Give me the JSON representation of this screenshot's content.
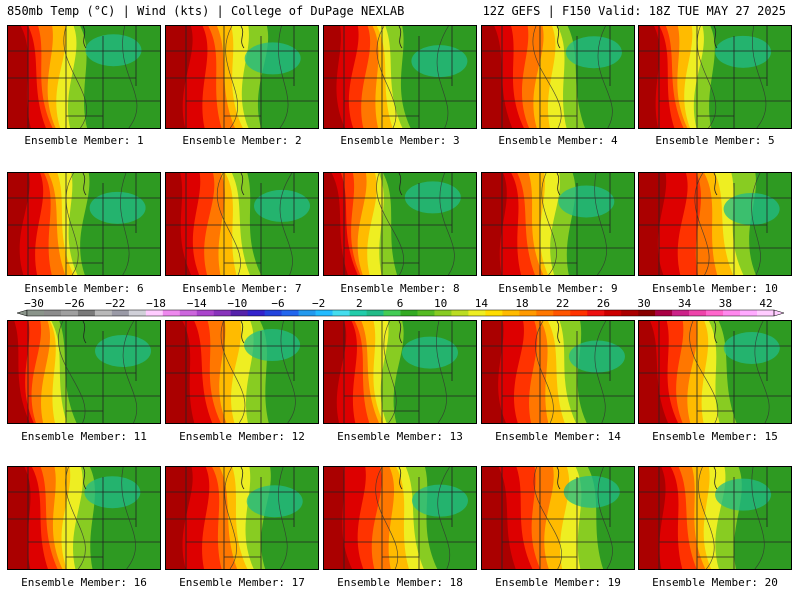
{
  "header": {
    "left": "850mb Temp (°C) | Wind (kts) | College of DuPage NEXLAB",
    "right": "12Z GEFS | F150 Valid: 18Z TUE MAY 27 2025"
  },
  "member_label_prefix": "Ensemble Member:",
  "members": [
    {
      "number": "1",
      "warm_extent": 0.38
    },
    {
      "number": "2",
      "warm_extent": 0.5
    },
    {
      "number": "3",
      "warm_extent": 0.42
    },
    {
      "number": "4",
      "warm_extent": 0.48
    },
    {
      "number": "5",
      "warm_extent": 0.36
    },
    {
      "number": "6",
      "warm_extent": 0.4
    },
    {
      "number": "7",
      "warm_extent": 0.45
    },
    {
      "number": "8",
      "warm_extent": 0.33
    },
    {
      "number": "9",
      "warm_extent": 0.45
    },
    {
      "number": "10",
      "warm_extent": 0.6
    },
    {
      "number": "11",
      "warm_extent": 0.3
    },
    {
      "number": "12",
      "warm_extent": 0.5
    },
    {
      "number": "13",
      "warm_extent": 0.38
    },
    {
      "number": "14",
      "warm_extent": 0.52
    },
    {
      "number": "15",
      "warm_extent": 0.45
    },
    {
      "number": "16",
      "warm_extent": 0.42
    },
    {
      "number": "17",
      "warm_extent": 0.52
    },
    {
      "number": "18",
      "warm_extent": 0.55
    },
    {
      "number": "19",
      "warm_extent": 0.58
    },
    {
      "number": "20",
      "warm_extent": 0.5
    }
  ],
  "colorbar": {
    "labels": [
      "−30",
      "−26",
      "−22",
      "−18",
      "−14",
      "−10",
      "−6",
      "−2",
      "2",
      "6",
      "10",
      "14",
      "18",
      "22",
      "26",
      "30",
      "34",
      "38",
      "42"
    ],
    "colors": [
      "#8a948a",
      "#8c8c8c",
      "#a0a0a0",
      "#7a7a7a",
      "#b8b8b8",
      "#9a9aa6",
      "#d0d0d8",
      "#ffccff",
      "#ee88ee",
      "#cc66dd",
      "#aa44cc",
      "#8833bb",
      "#5522aa",
      "#3322cc",
      "#2244dd",
      "#2266ee",
      "#2299ee",
      "#22bbff",
      "#44ddee",
      "#22ccaa",
      "#22bb88",
      "#44cc55",
      "#33aa22",
      "#55bb22",
      "#88cc22",
      "#bbdd22",
      "#eeee22",
      "#ffdd00",
      "#ffbb00",
      "#ff9900",
      "#ff7700",
      "#ff5500",
      "#ff3300",
      "#ee1111",
      "#cc0000",
      "#aa0000",
      "#880000",
      "#aa0044",
      "#cc2288",
      "#ee44aa",
      "#ff66cc",
      "#ff88ee",
      "#ffaaff",
      "#ffccff"
    ]
  }
}
